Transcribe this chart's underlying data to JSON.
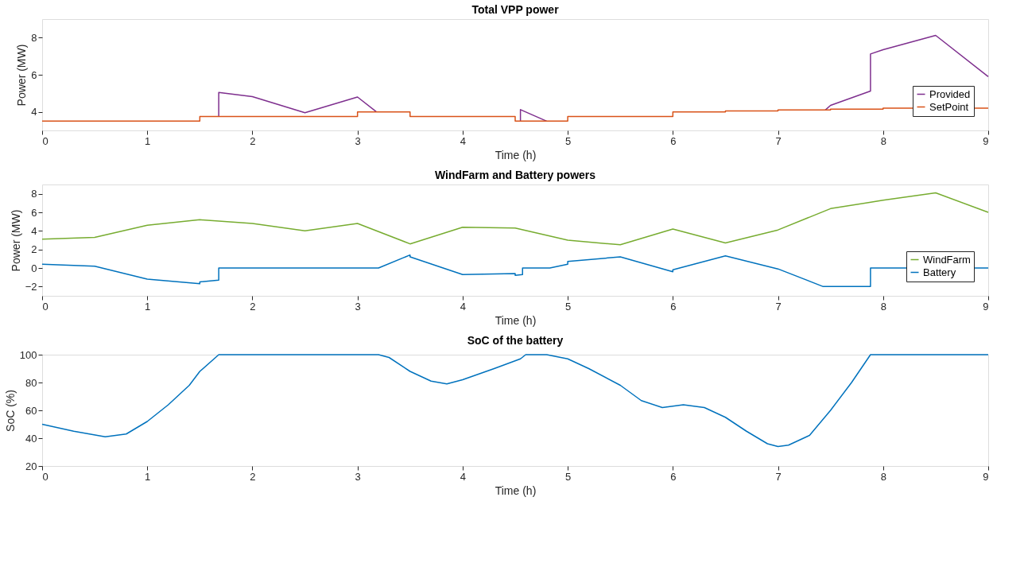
{
  "chart_data": [
    {
      "type": "line",
      "title": "Total VPP power",
      "xlabel": "Time (h)",
      "ylabel": "Power (MW)",
      "xlim": [
        0,
        9
      ],
      "xticks": [
        0,
        1,
        2,
        3,
        4,
        5,
        6,
        7,
        8,
        9
      ],
      "ylim": [
        3,
        9
      ],
      "yticks": [
        4,
        6,
        8
      ],
      "legend": "bottom right",
      "grid": false,
      "series": [
        {
          "name": "Provided",
          "color": "#7e2f8e",
          "x": [
            1.68,
            1.68,
            2,
            2.5,
            3,
            3.18,
            3.3,
            4.55,
            4.55,
            4.8,
            4.9,
            7.45,
            7.5,
            7.88,
            7.88,
            8,
            8.5,
            9
          ],
          "values": [
            3.75,
            5.05,
            4.82,
            3.95,
            4.8,
            4.0,
            null,
            3.5,
            4.12,
            3.5,
            null,
            4.1,
            4.35,
            5.12,
            7.12,
            7.35,
            8.12,
            5.9
          ]
        },
        {
          "name": "SetPoint",
          "color": "#d95319",
          "x": [
            0,
            1.5,
            1.5,
            3,
            3,
            3.5,
            3.5,
            4.5,
            4.5,
            5,
            5,
            6,
            6,
            6.5,
            6.5,
            7,
            7,
            7.5,
            7.5,
            8,
            8,
            9
          ],
          "values": [
            3.5,
            3.5,
            3.75,
            3.75,
            4.0,
            4.0,
            3.75,
            3.75,
            3.5,
            3.5,
            3.75,
            3.75,
            4.0,
            4.0,
            4.05,
            4.05,
            4.1,
            4.1,
            4.15,
            4.15,
            4.2,
            4.2
          ]
        }
      ]
    },
    {
      "type": "line",
      "title": "WindFarm and Battery powers",
      "xlabel": "Time (h)",
      "ylabel": "Power (MW)",
      "xlim": [
        0,
        9
      ],
      "xticks": [
        0,
        1,
        2,
        3,
        4,
        5,
        6,
        7,
        8,
        9
      ],
      "ylim": [
        -3,
        9
      ],
      "yticks": [
        -2,
        0,
        2,
        4,
        6,
        8
      ],
      "legend": "bottom right",
      "grid": false,
      "series": [
        {
          "name": "WindFarm",
          "color": "#77ac30",
          "x": [
            0,
            0.5,
            1,
            1.5,
            2,
            2.5,
            3,
            3.5,
            4,
            4.5,
            5,
            5.5,
            6,
            6.5,
            7,
            7.5,
            8,
            8.5,
            9
          ],
          "values": [
            3.1,
            3.3,
            4.6,
            5.2,
            4.8,
            4.0,
            4.8,
            2.6,
            4.4,
            4.3,
            3.0,
            2.5,
            4.2,
            2.7,
            4.1,
            6.4,
            7.3,
            8.1,
            6.0
          ]
        },
        {
          "name": "Battery",
          "color": "#0072bd",
          "x": [
            0,
            0.5,
            1,
            1.5,
            1.5,
            1.68,
            1.68,
            3.2,
            3.5,
            3.5,
            4,
            4.5,
            4.5,
            4.57,
            4.57,
            4.83,
            5,
            5,
            5.5,
            6,
            6,
            6.5,
            7,
            7.43,
            7.88,
            7.88,
            9
          ],
          "values": [
            0.4,
            0.2,
            -1.2,
            -1.7,
            -1.5,
            -1.3,
            0,
            0,
            1.4,
            1.2,
            -0.7,
            -0.6,
            -0.8,
            -0.7,
            0,
            0,
            0.4,
            0.7,
            1.2,
            -0.4,
            -0.2,
            1.3,
            -0.1,
            -2.0,
            -2.0,
            0,
            0
          ]
        }
      ]
    },
    {
      "type": "line",
      "title": "SoC of the battery",
      "xlabel": "Time (h)",
      "ylabel": "SoC (%)",
      "xlim": [
        0,
        9
      ],
      "xticks": [
        0,
        1,
        2,
        3,
        4,
        5,
        6,
        7,
        8,
        9
      ],
      "ylim": [
        20,
        100
      ],
      "yticks": [
        20,
        40,
        60,
        80,
        100
      ],
      "grid": false,
      "series": [
        {
          "color": "#0072bd",
          "x": [
            0,
            0.3,
            0.6,
            0.8,
            1,
            1.2,
            1.4,
            1.5,
            1.68,
            3.2,
            3.3,
            3.5,
            3.7,
            3.85,
            4,
            4.3,
            4.55,
            4.6,
            4.8,
            5,
            5.2,
            5.5,
            5.7,
            5.9,
            6.1,
            6.3,
            6.5,
            6.7,
            6.9,
            7,
            7.1,
            7.3,
            7.5,
            7.7,
            7.88,
            9
          ],
          "values": [
            50,
            45,
            41,
            43,
            52,
            64,
            78,
            88,
            100,
            100,
            98,
            88,
            81,
            79,
            82,
            90,
            97,
            100,
            100,
            97,
            90,
            78,
            67,
            62,
            64,
            62,
            55,
            45,
            36,
            34,
            35,
            42,
            60,
            80,
            100,
            100
          ]
        }
      ]
    }
  ]
}
